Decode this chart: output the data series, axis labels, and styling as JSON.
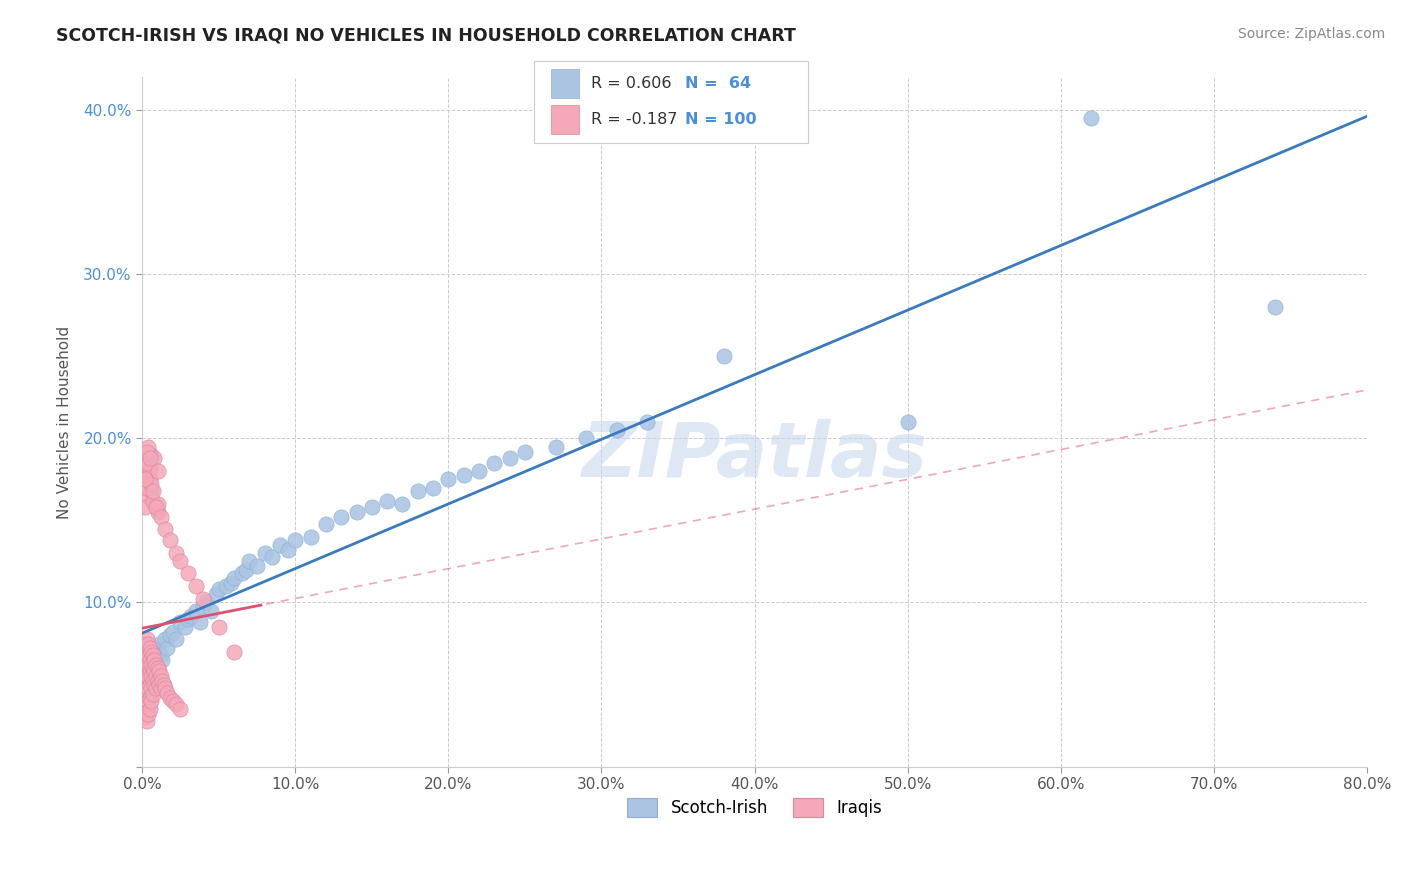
{
  "title": "SCOTCH-IRISH VS IRAQI NO VEHICLES IN HOUSEHOLD CORRELATION CHART",
  "source_text": "Source: ZipAtlas.com",
  "ylabel": "No Vehicles in Household",
  "xlim": [
    0.0,
    0.8
  ],
  "ylim": [
    0.0,
    0.42
  ],
  "xticks": [
    0.0,
    0.1,
    0.2,
    0.3,
    0.4,
    0.5,
    0.6,
    0.7,
    0.8
  ],
  "yticks": [
    0.0,
    0.1,
    0.2,
    0.3,
    0.4
  ],
  "xtick_labels": [
    "0.0%",
    "10.0%",
    "20.0%",
    "30.0%",
    "40.0%",
    "50.0%",
    "60.0%",
    "70.0%",
    "80.0%"
  ],
  "ytick_labels": [
    "",
    "10.0%",
    "20.0%",
    "30.0%",
    "40.0%"
  ],
  "scotch_irish_color": "#aac4e2",
  "iraqi_color": "#f4a8b8",
  "scotch_irish_line_color": "#3a7abf",
  "iraqi_line_color": "#e05070",
  "watermark": "ZIPatlas",
  "scotch_irish_points": [
    [
      0.001,
      0.06
    ],
    [
      0.002,
      0.058
    ],
    [
      0.003,
      0.062
    ],
    [
      0.004,
      0.055
    ],
    [
      0.005,
      0.068
    ],
    [
      0.006,
      0.065
    ],
    [
      0.007,
      0.06
    ],
    [
      0.008,
      0.072
    ],
    [
      0.009,
      0.058
    ],
    [
      0.01,
      0.07
    ],
    [
      0.011,
      0.075
    ],
    [
      0.012,
      0.068
    ],
    [
      0.013,
      0.065
    ],
    [
      0.015,
      0.078
    ],
    [
      0.016,
      0.072
    ],
    [
      0.018,
      0.08
    ],
    [
      0.02,
      0.082
    ],
    [
      0.022,
      0.078
    ],
    [
      0.025,
      0.088
    ],
    [
      0.028,
      0.085
    ],
    [
      0.03,
      0.09
    ],
    [
      0.032,
      0.092
    ],
    [
      0.035,
      0.095
    ],
    [
      0.038,
      0.088
    ],
    [
      0.04,
      0.098
    ],
    [
      0.042,
      0.1
    ],
    [
      0.045,
      0.095
    ],
    [
      0.048,
      0.105
    ],
    [
      0.05,
      0.108
    ],
    [
      0.055,
      0.11
    ],
    [
      0.058,
      0.112
    ],
    [
      0.06,
      0.115
    ],
    [
      0.065,
      0.118
    ],
    [
      0.068,
      0.12
    ],
    [
      0.07,
      0.125
    ],
    [
      0.075,
      0.122
    ],
    [
      0.08,
      0.13
    ],
    [
      0.085,
      0.128
    ],
    [
      0.09,
      0.135
    ],
    [
      0.095,
      0.132
    ],
    [
      0.1,
      0.138
    ],
    [
      0.11,
      0.14
    ],
    [
      0.12,
      0.148
    ],
    [
      0.13,
      0.152
    ],
    [
      0.14,
      0.155
    ],
    [
      0.15,
      0.158
    ],
    [
      0.16,
      0.162
    ],
    [
      0.17,
      0.16
    ],
    [
      0.18,
      0.168
    ],
    [
      0.19,
      0.17
    ],
    [
      0.2,
      0.175
    ],
    [
      0.21,
      0.178
    ],
    [
      0.22,
      0.18
    ],
    [
      0.23,
      0.185
    ],
    [
      0.24,
      0.188
    ],
    [
      0.25,
      0.192
    ],
    [
      0.27,
      0.195
    ],
    [
      0.29,
      0.2
    ],
    [
      0.31,
      0.205
    ],
    [
      0.33,
      0.21
    ],
    [
      0.38,
      0.25
    ],
    [
      0.5,
      0.21
    ],
    [
      0.62,
      0.395
    ],
    [
      0.74,
      0.28
    ]
  ],
  "iraqi_points": [
    [
      0.001,
      0.068
    ],
    [
      0.001,
      0.072
    ],
    [
      0.001,
      0.06
    ],
    [
      0.001,
      0.055
    ],
    [
      0.001,
      0.05
    ],
    [
      0.001,
      0.045
    ],
    [
      0.001,
      0.04
    ],
    [
      0.001,
      0.035
    ],
    [
      0.002,
      0.075
    ],
    [
      0.002,
      0.068
    ],
    [
      0.002,
      0.062
    ],
    [
      0.002,
      0.058
    ],
    [
      0.002,
      0.052
    ],
    [
      0.002,
      0.048
    ],
    [
      0.002,
      0.042
    ],
    [
      0.002,
      0.035
    ],
    [
      0.002,
      0.03
    ],
    [
      0.003,
      0.078
    ],
    [
      0.003,
      0.072
    ],
    [
      0.003,
      0.065
    ],
    [
      0.003,
      0.06
    ],
    [
      0.003,
      0.055
    ],
    [
      0.003,
      0.048
    ],
    [
      0.003,
      0.042
    ],
    [
      0.003,
      0.035
    ],
    [
      0.003,
      0.028
    ],
    [
      0.004,
      0.075
    ],
    [
      0.004,
      0.068
    ],
    [
      0.004,
      0.062
    ],
    [
      0.004,
      0.055
    ],
    [
      0.004,
      0.048
    ],
    [
      0.004,
      0.04
    ],
    [
      0.004,
      0.032
    ],
    [
      0.005,
      0.072
    ],
    [
      0.005,
      0.065
    ],
    [
      0.005,
      0.058
    ],
    [
      0.005,
      0.05
    ],
    [
      0.005,
      0.042
    ],
    [
      0.005,
      0.035
    ],
    [
      0.006,
      0.07
    ],
    [
      0.006,
      0.062
    ],
    [
      0.006,
      0.055
    ],
    [
      0.006,
      0.048
    ],
    [
      0.006,
      0.04
    ],
    [
      0.007,
      0.068
    ],
    [
      0.007,
      0.06
    ],
    [
      0.007,
      0.052
    ],
    [
      0.007,
      0.044
    ],
    [
      0.008,
      0.065
    ],
    [
      0.008,
      0.058
    ],
    [
      0.008,
      0.05
    ],
    [
      0.009,
      0.062
    ],
    [
      0.009,
      0.055
    ],
    [
      0.009,
      0.048
    ],
    [
      0.01,
      0.06
    ],
    [
      0.01,
      0.052
    ],
    [
      0.011,
      0.058
    ],
    [
      0.011,
      0.05
    ],
    [
      0.012,
      0.055
    ],
    [
      0.012,
      0.048
    ],
    [
      0.013,
      0.052
    ],
    [
      0.014,
      0.05
    ],
    [
      0.015,
      0.048
    ],
    [
      0.016,
      0.045
    ],
    [
      0.018,
      0.042
    ],
    [
      0.02,
      0.04
    ],
    [
      0.022,
      0.038
    ],
    [
      0.025,
      0.035
    ],
    [
      0.008,
      0.16
    ],
    [
      0.01,
      0.155
    ],
    [
      0.004,
      0.165
    ],
    [
      0.005,
      0.175
    ],
    [
      0.006,
      0.168
    ],
    [
      0.003,
      0.17
    ],
    [
      0.002,
      0.158
    ],
    [
      0.007,
      0.162
    ],
    [
      0.01,
      0.16
    ],
    [
      0.004,
      0.178
    ],
    [
      0.005,
      0.182
    ],
    [
      0.006,
      0.172
    ],
    [
      0.003,
      0.185
    ],
    [
      0.002,
      0.175
    ],
    [
      0.007,
      0.168
    ],
    [
      0.009,
      0.158
    ],
    [
      0.012,
      0.152
    ],
    [
      0.015,
      0.145
    ],
    [
      0.018,
      0.138
    ],
    [
      0.022,
      0.13
    ],
    [
      0.006,
      0.19
    ],
    [
      0.004,
      0.195
    ],
    [
      0.008,
      0.188
    ],
    [
      0.01,
      0.18
    ],
    [
      0.003,
      0.192
    ],
    [
      0.005,
      0.188
    ],
    [
      0.025,
      0.125
    ],
    [
      0.03,
      0.118
    ],
    [
      0.035,
      0.11
    ],
    [
      0.04,
      0.102
    ],
    [
      0.05,
      0.085
    ],
    [
      0.06,
      0.07
    ]
  ]
}
